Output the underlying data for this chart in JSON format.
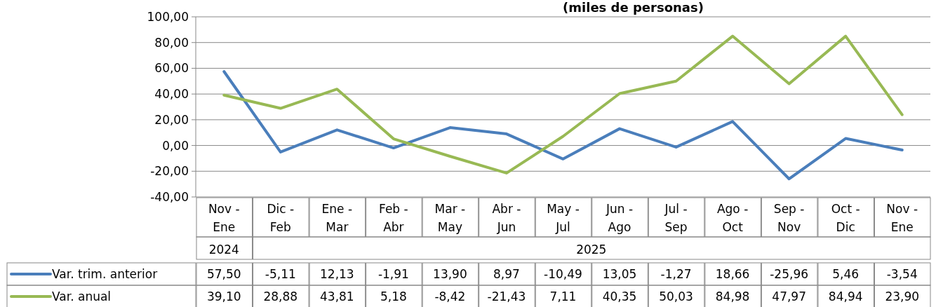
{
  "chart_data": {
    "type": "line",
    "title": "(miles de personas)",
    "categories": [
      "Nov - Ene",
      "Dic - Feb",
      "Ene - Mar",
      "Feb - Abr",
      "Mar - May",
      "Abr - Jun",
      "May - Jul",
      "Jun - Ago",
      "Jul - Sep",
      "Ago - Oct",
      "Sep - Nov",
      "Oct - Dic",
      "Nov - Ene"
    ],
    "series": [
      {
        "name": "Var. trim. anterior",
        "color": "#4a7ebb",
        "values": [
          57.5,
          -5.11,
          12.13,
          -1.91,
          13.9,
          8.97,
          -10.49,
          13.05,
          -1.27,
          18.66,
          -25.96,
          5.46,
          -3.54
        ],
        "value_labels": [
          "57,50",
          "-5,11",
          "12,13",
          "-1,91",
          "13,90",
          "8,97",
          "-10,49",
          "13,05",
          "-1,27",
          "18,66",
          "-25,96",
          "5,46",
          "-3,54"
        ]
      },
      {
        "name": "Var. anual",
        "color": "#98b954",
        "values": [
          39.1,
          28.88,
          43.81,
          5.18,
          -8.42,
          -21.43,
          7.11,
          40.35,
          50.03,
          84.98,
          47.97,
          84.94,
          23.9
        ],
        "value_labels": [
          "39,10",
          "28,88",
          "43,81",
          "5,18",
          "-8,42",
          "-21,43",
          "7,11",
          "40,35",
          "50,03",
          "84,98",
          "47,97",
          "84,94",
          "23,90"
        ]
      }
    ],
    "ylim": [
      -40,
      100
    ],
    "yticks": [
      {
        "value": -40,
        "label": "-40,00"
      },
      {
        "value": -20,
        "label": "-20,00"
      },
      {
        "value": 0,
        "label": "0,00"
      },
      {
        "value": 20,
        "label": "20,00"
      },
      {
        "value": 40,
        "label": "40,00"
      },
      {
        "value": 60,
        "label": "60,00"
      },
      {
        "value": 80,
        "label": "80,00"
      },
      {
        "value": 100,
        "label": "100,00"
      }
    ],
    "grid": "y",
    "legend": "bottom",
    "marker": "none",
    "line_style": "solid",
    "annotations": [
      "2024",
      "2025"
    ]
  }
}
